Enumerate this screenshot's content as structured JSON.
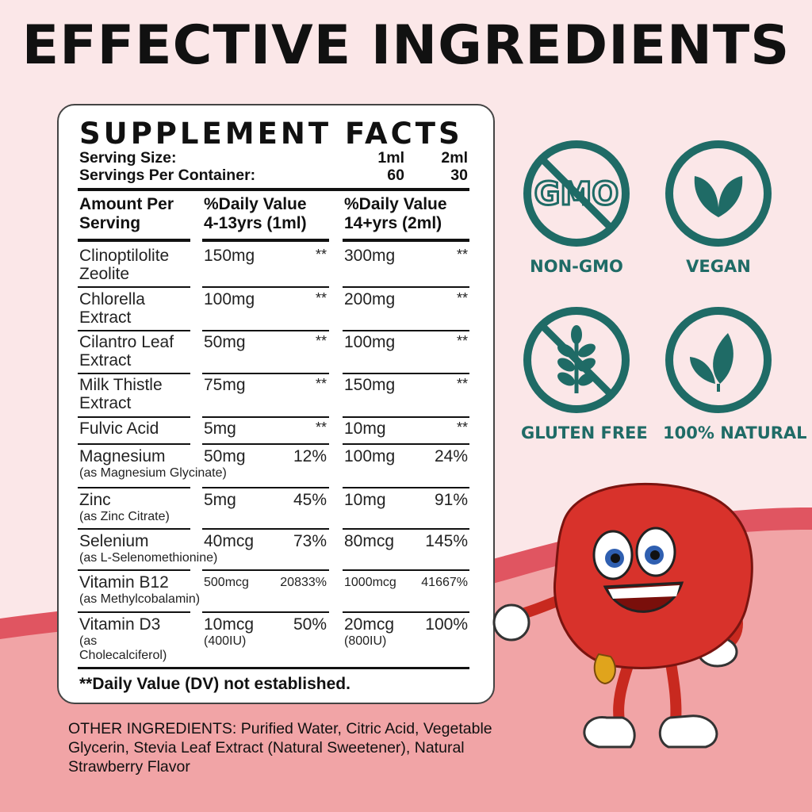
{
  "headline": "EFFECTIVE INGREDIENTS",
  "facts": {
    "title": "SUPPLEMENT FACTS",
    "serving_size_label": "Serving Size:",
    "serving_size_1": "1ml",
    "serving_size_2": "2ml",
    "servings_label": "Servings Per Container:",
    "servings_1": "60",
    "servings_2": "30",
    "col_amount": [
      "Amount Per",
      "Serving"
    ],
    "col_kids": [
      "%Daily Value",
      "4-13yrs (1ml)"
    ],
    "col_adults": [
      "%Daily Value",
      "14+yrs (2ml)"
    ],
    "rows": [
      {
        "name": [
          "Clinoptilolite",
          "Zeolite"
        ],
        "a1": "150mg",
        "d1": "**",
        "a2": "300mg",
        "d2": "**"
      },
      {
        "name": [
          "Chlorella",
          "Extract"
        ],
        "a1": "100mg",
        "d1": "**",
        "a2": "200mg",
        "d2": "**"
      },
      {
        "name": [
          "Cilantro Leaf",
          "Extract"
        ],
        "a1": "50mg",
        "d1": "**",
        "a2": "100mg",
        "d2": "**"
      },
      {
        "name": [
          "Milk Thistle",
          "Extract"
        ],
        "a1": "75mg",
        "d1": "**",
        "a2": "150mg",
        "d2": "**"
      },
      {
        "name": [
          "Fulvic Acid"
        ],
        "a1": "5mg",
        "d1": "**",
        "a2": "10mg",
        "d2": "**"
      },
      {
        "name": [
          "Magnesium"
        ],
        "sub": "(as Magnesium Glycinate)",
        "a1": "50mg",
        "d1": "12%",
        "a2": "100mg",
        "d2": "24%"
      },
      {
        "name": [
          "Zinc"
        ],
        "sub": "(as Zinc Citrate)",
        "a1": "5mg",
        "d1": "45%",
        "a2": "10mg",
        "d2": "91%"
      },
      {
        "name": [
          "Selenium"
        ],
        "sub": "(as L-Selenomethionine)",
        "a1": "40mcg",
        "d1": "73%",
        "a2": "80mcg",
        "d2": "145%"
      },
      {
        "name": [
          "Vitamin B12"
        ],
        "sub": "(as Methylcobalamin)",
        "a1": "500mcg",
        "d1": "20833%",
        "a2": "1000mcg",
        "d2": "41667%"
      },
      {
        "name": [
          "Vitamin D3"
        ],
        "sub": "(as",
        "sub2": "Cholecalciferol)",
        "a1": "10mcg",
        "a1b": "(400IU)",
        "d1": "50%",
        "a2": "20mcg",
        "a2b": "(800IU)",
        "d2": "100%"
      }
    ],
    "footnote": "**Daily Value (DV) not established."
  },
  "other_ingredients": {
    "label": "OTHER INGREDIENTS:",
    "text": " Purified Water, Citric Acid, Vegetable Glycerin, Stevia Leaf Extract (Natural Sweetener), Natural Strawberry Flavor"
  },
  "badges": [
    {
      "label": "NON-GMO",
      "icon": "non-gmo-icon",
      "icon_text": "GMO"
    },
    {
      "label": "VEGAN",
      "icon": "vegan-leaf-icon"
    },
    {
      "label": "GLUTEN FREE",
      "icon": "gluten-free-wheat-icon"
    },
    {
      "label": "100% NATURAL",
      "icon": "natural-leaves-icon"
    }
  ],
  "colors": {
    "badge_teal": "#1f6b66",
    "bg_light_pink": "#fbe7e8",
    "bg_wave_red": "#e05561",
    "bg_pink": "#f1a4a6",
    "mascot_red": "#d8322b"
  }
}
